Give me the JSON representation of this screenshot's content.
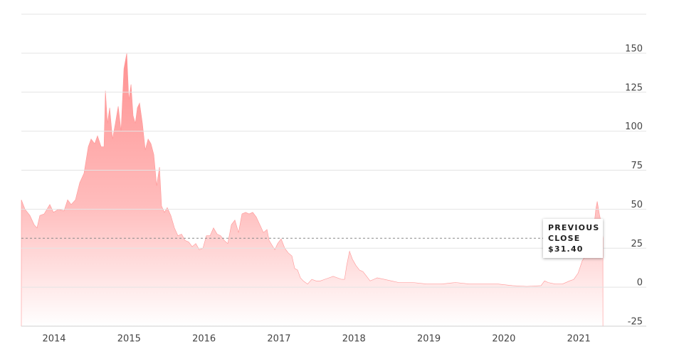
{
  "chart_data": {
    "type": "area",
    "x": [
      2013.563,
      2013.611,
      2013.677,
      2013.734,
      2013.772,
      2013.81,
      2013.867,
      2013.943,
      2013.991,
      2014.057,
      2014.133,
      2014.18,
      2014.228,
      2014.285,
      2014.342,
      2014.399,
      2014.456,
      2014.494,
      2014.541,
      2014.579,
      2014.627,
      2014.665,
      2014.684,
      2014.712,
      2014.741,
      2014.779,
      2014.817,
      2014.855,
      2014.893,
      2014.931,
      2014.969,
      2014.997,
      2015.026,
      2015.054,
      2015.083,
      2015.111,
      2015.14,
      2015.178,
      2015.216,
      2015.254,
      2015.292,
      2015.33,
      2015.368,
      2015.406,
      2015.434,
      2015.472,
      2015.51,
      2015.557,
      2015.605,
      2015.652,
      2015.7,
      2015.747,
      2015.795,
      2015.842,
      2015.89,
      2015.937,
      2015.985,
      2016.032,
      2016.08,
      2016.127,
      2016.175,
      2016.222,
      2016.27,
      2016.317,
      2016.365,
      2016.412,
      2016.46,
      2016.507,
      2016.555,
      2016.602,
      2016.65,
      2016.697,
      2016.745,
      2016.792,
      2016.84,
      2016.868,
      2016.906,
      2016.944,
      2016.982,
      2017.029,
      2017.077,
      2017.124,
      2017.172,
      2017.21,
      2017.248,
      2017.286,
      2017.324,
      2017.381,
      2017.438,
      2017.495,
      2017.552,
      2017.609,
      2017.666,
      2017.723,
      2017.78,
      2017.837,
      2017.875,
      2017.903,
      2017.941,
      2017.979,
      2018.026,
      2018.074,
      2018.121,
      2018.169,
      2018.216,
      2018.264,
      2018.311,
      2018.406,
      2018.501,
      2018.596,
      2018.786,
      2018.976,
      2019.166,
      2019.356,
      2019.546,
      2019.736,
      2019.926,
      2020.116,
      2020.306,
      2020.496,
      2020.543,
      2020.591,
      2020.686,
      2020.781,
      2020.876,
      2020.933,
      2020.99,
      2021.046,
      2021.103,
      2021.16,
      2021.198,
      2021.227,
      2021.246,
      2021.274,
      2021.303,
      2021.322
    ],
    "values": [
      56,
      50,
      46,
      40,
      38,
      46,
      47,
      53,
      48,
      50,
      49,
      56,
      53,
      56,
      67,
      73,
      90,
      95,
      92,
      97,
      90,
      90,
      126,
      105,
      115,
      95,
      105,
      116,
      100,
      140,
      150,
      120,
      130,
      110,
      105,
      115,
      118,
      105,
      88,
      95,
      92,
      85,
      65,
      77,
      52,
      48,
      51,
      46,
      38,
      33,
      34,
      30,
      29,
      26,
      28,
      24,
      25,
      33,
      33,
      38,
      34,
      33,
      30,
      28,
      40,
      43,
      35,
      47,
      48,
      47,
      48,
      45,
      40,
      35,
      37,
      30,
      27,
      24,
      28,
      31,
      25,
      22,
      20,
      12,
      11,
      6,
      4,
      2,
      5,
      4,
      4,
      5,
      6,
      7,
      6,
      5,
      5,
      14,
      23,
      18,
      14,
      11,
      10,
      7,
      4,
      5,
      6,
      5,
      4,
      3,
      3,
      2,
      2,
      3,
      2,
      2,
      2,
      1,
      0.5,
      1,
      4,
      3,
      2,
      2,
      4,
      5,
      9,
      17,
      21,
      28,
      37,
      50,
      55,
      47,
      40,
      31.4
    ],
    "color": "#ff9696",
    "xlim": [
      2013.563,
      2021.9
    ],
    "xticks": [
      2014,
      2015,
      2016,
      2017,
      2018,
      2019,
      2020,
      2021
    ],
    "ylim": [
      -25,
      175
    ],
    "yticks": [
      -25,
      0,
      25,
      50,
      75,
      100,
      125,
      150
    ],
    "grid": true,
    "reference_line": {
      "label": "PREVIOUS CLOSE",
      "value": 31.4,
      "value_label": "$31.40"
    }
  }
}
